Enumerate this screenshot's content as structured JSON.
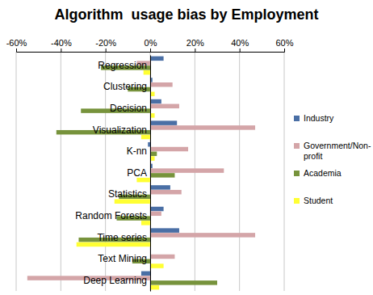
{
  "chart_data": {
    "type": "bar",
    "orientation": "horizontal",
    "title": "Algorithm  usage bias by Employment",
    "categories": [
      "Regression",
      "Clustering",
      "Decision",
      "Visualization",
      "K-nn",
      "PCA",
      "Statistics",
      "Random Forests",
      "Time series",
      "Text Mining",
      "Deep Learning"
    ],
    "series": [
      {
        "name": "Industry",
        "color": "#4a6fa5",
        "values": [
          6,
          1,
          5,
          12,
          -1,
          1,
          9,
          6,
          13,
          0,
          -4
        ]
      },
      {
        "name": "Government/Non-profit",
        "color": "#d4a5a8",
        "values": [
          -6,
          10,
          13,
          47,
          17,
          33,
          14,
          5,
          47,
          11,
          -55
        ]
      },
      {
        "name": "Academia",
        "color": "#77933c",
        "values": [
          -22,
          -10,
          -31,
          -42,
          3,
          11,
          -14,
          -15,
          -32,
          -8,
          30
        ]
      },
      {
        "name": "Student",
        "color": "#ffff33",
        "values": [
          -3,
          2,
          2,
          -4,
          2,
          -6,
          -16,
          -4,
          -33,
          6,
          4
        ]
      }
    ],
    "xlim": [
      -60,
      60
    ],
    "xticks": [
      {
        "value": -60,
        "label": "-60%"
      },
      {
        "value": -40,
        "label": "-40%"
      },
      {
        "value": -20,
        "label": "-20%"
      },
      {
        "value": 0,
        "label": "0%"
      },
      {
        "value": 20,
        "label": "20%"
      },
      {
        "value": 40,
        "label": "40%"
      },
      {
        "value": 60,
        "label": "60%"
      }
    ],
    "grid": true,
    "legend": "right"
  }
}
